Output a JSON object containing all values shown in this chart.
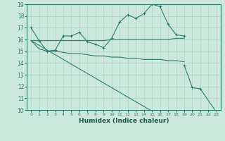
{
  "xlabel": "Humidex (Indice chaleur)",
  "bg_color": "#cce8dd",
  "grid_color": "#aad4c4",
  "line_color": "#2d7d6e",
  "x_min": -0.5,
  "x_max": 23.5,
  "y_min": 10,
  "y_max": 19,
  "line_wavy": [
    17.0,
    15.9,
    15.0,
    15.1,
    16.3,
    16.3,
    16.6,
    15.8,
    15.6,
    15.3,
    16.1,
    17.5,
    18.1,
    17.8,
    18.2,
    19.0,
    18.8,
    17.3,
    16.4,
    16.3,
    null,
    null,
    null,
    null
  ],
  "line_flat_high": [
    15.9,
    15.9,
    15.9,
    15.9,
    15.9,
    15.9,
    15.9,
    15.9,
    15.9,
    15.9,
    16.0,
    16.0,
    16.0,
    16.0,
    16.0,
    16.0,
    16.0,
    16.0,
    16.1,
    16.1,
    null,
    null,
    null,
    null
  ],
  "line_flat_mid": [
    15.9,
    15.2,
    15.0,
    15.0,
    14.9,
    14.8,
    14.8,
    14.7,
    14.6,
    14.6,
    14.5,
    14.5,
    14.4,
    14.4,
    14.3,
    14.3,
    14.3,
    14.2,
    14.2,
    14.1,
    null,
    null,
    null,
    null
  ],
  "line_diag": [
    15.9,
    15.5,
    15.1,
    14.7,
    14.3,
    13.9,
    13.5,
    13.1,
    12.7,
    12.3,
    11.9,
    11.5,
    11.1,
    10.7,
    10.3,
    9.9,
    null,
    null,
    null,
    null,
    null,
    null,
    null,
    null
  ],
  "line_drop": [
    null,
    null,
    null,
    null,
    null,
    null,
    null,
    null,
    null,
    null,
    null,
    null,
    null,
    null,
    null,
    null,
    null,
    null,
    null,
    13.8,
    11.9,
    11.8,
    null,
    9.8
  ],
  "yticks": [
    10,
    11,
    12,
    13,
    14,
    15,
    16,
    17,
    18,
    19
  ],
  "xticks": [
    0,
    1,
    2,
    3,
    4,
    5,
    6,
    7,
    8,
    9,
    10,
    11,
    12,
    13,
    14,
    15,
    16,
    17,
    18,
    19,
    20,
    21,
    22,
    23
  ]
}
